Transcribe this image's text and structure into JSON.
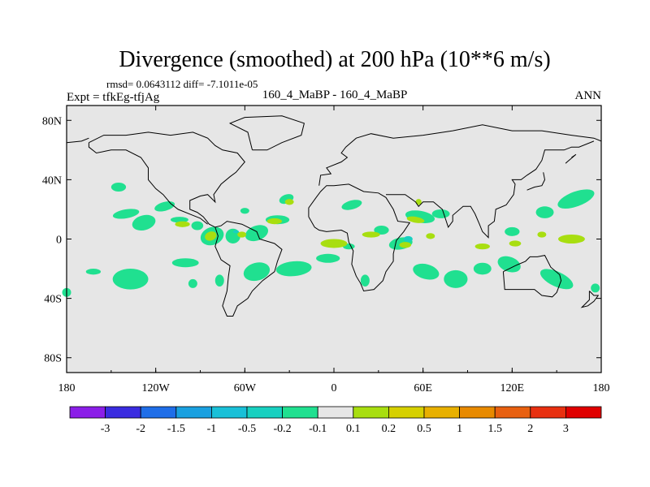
{
  "chart_data": {
    "type": "heatmap",
    "title": "Divergence (smoothed) at 200 hPa (10**6 m/s)",
    "stats_line": "rmsd= 0.0643112 diff= -7.1011e-05",
    "left_label": "Expt = tfkEg-tfjAg",
    "center_label": "160_4_MaBP - 160_4_MaBP",
    "right_label": "ANN",
    "xlim": [
      -180,
      180
    ],
    "ylim": [
      -90,
      90
    ],
    "x_ticks": [
      {
        "value": -180,
        "label": "180"
      },
      {
        "value": -120,
        "label": "120W"
      },
      {
        "value": -60,
        "label": "60W"
      },
      {
        "value": 0,
        "label": "0"
      },
      {
        "value": 60,
        "label": "60E"
      },
      {
        "value": 120,
        "label": "120E"
      },
      {
        "value": 180,
        "label": "180"
      }
    ],
    "y_ticks": [
      {
        "value": 80,
        "label": "80N"
      },
      {
        "value": 40,
        "label": "40N"
      },
      {
        "value": 0,
        "label": "0"
      },
      {
        "value": -40,
        "label": "40S"
      },
      {
        "value": -80,
        "label": "80S"
      }
    ],
    "colorbar": {
      "levels": [
        "-3",
        "-2",
        "-1.5",
        "-1",
        "-0.5",
        "-0.2",
        "-0.1",
        "0.1",
        "0.2",
        "0.5",
        "1",
        "1.5",
        "2",
        "3"
      ],
      "colors": [
        "#8b1ee8",
        "#3a2ce0",
        "#1f6ee8",
        "#1aa0e0",
        "#19c0d8",
        "#18d0c0",
        "#20e090",
        "#e6e6e6",
        "#a8de10",
        "#d6d000",
        "#e8b000",
        "#e88a00",
        "#e86010",
        "#e83010",
        "#e00000"
      ]
    },
    "blobs": [
      {
        "lon": -145,
        "lat": 35,
        "rx": 5,
        "ry": 3,
        "rot": 0,
        "range": "-0.2 to -0.1"
      },
      {
        "lon": -140,
        "lat": 17,
        "rx": 9,
        "ry": 3,
        "rot": -10,
        "range": "-0.2 to -0.1"
      },
      {
        "lon": -128,
        "lat": 11,
        "rx": 8,
        "ry": 5,
        "rot": -15,
        "range": "-0.2 to -0.1"
      },
      {
        "lon": -114,
        "lat": 22,
        "rx": 7,
        "ry": 3,
        "rot": -15,
        "range": "-0.2 to -0.1"
      },
      {
        "lon": -104,
        "lat": 13,
        "rx": 6,
        "ry": 2,
        "rot": 0,
        "range": "-0.2 to -0.1"
      },
      {
        "lon": -92,
        "lat": 9,
        "rx": 4,
        "ry": 3,
        "rot": 0,
        "range": "-0.2 to -0.1"
      },
      {
        "lon": -82,
        "lat": 2,
        "rx": 8,
        "ry": 6,
        "rot": -20,
        "range": "-0.2 to -0.1"
      },
      {
        "lon": -68,
        "lat": 2,
        "rx": 5,
        "ry": 5,
        "rot": 0,
        "range": "-0.2 to -0.1"
      },
      {
        "lon": -52,
        "lat": 4,
        "rx": 8,
        "ry": 5,
        "rot": -20,
        "range": "-0.2 to -0.1"
      },
      {
        "lon": -60,
        "lat": 19,
        "rx": 3,
        "ry": 2,
        "rot": 0,
        "range": "-0.2 to -0.1"
      },
      {
        "lon": -100,
        "lat": -16,
        "rx": 9,
        "ry": 3,
        "rot": 0,
        "range": "-0.2 to -0.1"
      },
      {
        "lon": -137,
        "lat": -27,
        "rx": 12,
        "ry": 7,
        "rot": 0,
        "range": "-0.2 to -0.1"
      },
      {
        "lon": -162,
        "lat": -22,
        "rx": 5,
        "ry": 2,
        "rot": 0,
        "range": "-0.2 to -0.1"
      },
      {
        "lon": -95,
        "lat": -30,
        "rx": 3,
        "ry": 3,
        "rot": 0,
        "range": "-0.2 to -0.1"
      },
      {
        "lon": -77,
        "lat": -28,
        "rx": 3,
        "ry": 4,
        "rot": 0,
        "range": "-0.2 to -0.1"
      },
      {
        "lon": -52,
        "lat": -22,
        "rx": 9,
        "ry": 6,
        "rot": -15,
        "range": "-0.2 to -0.1"
      },
      {
        "lon": -27,
        "lat": -20,
        "rx": 12,
        "ry": 5,
        "rot": -5,
        "range": "-0.2 to -0.1"
      },
      {
        "lon": -38,
        "lat": 13,
        "rx": 8,
        "ry": 3,
        "rot": 0,
        "range": "-0.2 to -0.1"
      },
      {
        "lon": -32,
        "lat": 27,
        "rx": 5,
        "ry": 3,
        "rot": -20,
        "range": "-0.2 to -0.1"
      },
      {
        "lon": -4,
        "lat": -13,
        "rx": 8,
        "ry": 3,
        "rot": 0,
        "range": "-0.2 to -0.1"
      },
      {
        "lon": 10,
        "lat": -5,
        "rx": 4,
        "ry": 2,
        "rot": 0,
        "range": "-0.2 to -0.1"
      },
      {
        "lon": 12,
        "lat": 23,
        "rx": 7,
        "ry": 3,
        "rot": -15,
        "range": "-0.2 to -0.1"
      },
      {
        "lon": 32,
        "lat": 6,
        "rx": 5,
        "ry": 3,
        "rot": 0,
        "range": "-0.2 to -0.1"
      },
      {
        "lon": 45,
        "lat": -3,
        "rx": 8,
        "ry": 4,
        "rot": -10,
        "range": "-0.2 to -0.1"
      },
      {
        "lon": 58,
        "lat": 15,
        "rx": 10,
        "ry": 4,
        "rot": 10,
        "range": "-0.2 to -0.1"
      },
      {
        "lon": 72,
        "lat": 17,
        "rx": 6,
        "ry": 3,
        "rot": 0,
        "range": "-0.2 to -0.1"
      },
      {
        "lon": 62,
        "lat": -22,
        "rx": 9,
        "ry": 5,
        "rot": 15,
        "range": "-0.2 to -0.1"
      },
      {
        "lon": 82,
        "lat": -27,
        "rx": 8,
        "ry": 6,
        "rot": 0,
        "range": "-0.2 to -0.1"
      },
      {
        "lon": 100,
        "lat": -20,
        "rx": 6,
        "ry": 4,
        "rot": 0,
        "range": "-0.2 to -0.1"
      },
      {
        "lon": 118,
        "lat": -17,
        "rx": 8,
        "ry": 5,
        "rot": 20,
        "range": "-0.2 to -0.1"
      },
      {
        "lon": 150,
        "lat": -27,
        "rx": 12,
        "ry": 5,
        "rot": 25,
        "range": "-0.2 to -0.1"
      },
      {
        "lon": 142,
        "lat": 18,
        "rx": 6,
        "ry": 4,
        "rot": 0,
        "range": "-0.2 to -0.1"
      },
      {
        "lon": 163,
        "lat": 27,
        "rx": 13,
        "ry": 5,
        "rot": -20,
        "range": "-0.2 to -0.1"
      },
      {
        "lon": 120,
        "lat": 5,
        "rx": 5,
        "ry": 3,
        "rot": 0,
        "range": "-0.2 to -0.1"
      },
      {
        "lon": 176,
        "lat": -33,
        "rx": 3,
        "ry": 3,
        "rot": 0,
        "range": "-0.2 to -0.1"
      },
      {
        "lon": -180,
        "lat": -36,
        "rx": 3,
        "ry": 3,
        "rot": 0,
        "range": "-0.2 to -0.1"
      },
      {
        "lon": 21,
        "lat": -28,
        "rx": 3,
        "ry": 4,
        "rot": 0,
        "range": "-0.2 to -0.1"
      },
      {
        "lon": -102,
        "lat": 10,
        "rx": 5,
        "ry": 2,
        "rot": 0,
        "range": "0.1 to 0.2"
      },
      {
        "lon": -83,
        "lat": 2,
        "rx": 4,
        "ry": 3,
        "rot": -20,
        "range": "0.1 to 0.2"
      },
      {
        "lon": -62,
        "lat": 3,
        "rx": 3,
        "ry": 2,
        "rot": 0,
        "range": "0.1 to 0.2"
      },
      {
        "lon": 0,
        "lat": -3,
        "rx": 9,
        "ry": 3,
        "rot": 0,
        "range": "0.1 to 0.2"
      },
      {
        "lon": 25,
        "lat": 3,
        "rx": 6,
        "ry": 2,
        "rot": 0,
        "range": "0.1 to 0.2"
      },
      {
        "lon": 55,
        "lat": 13,
        "rx": 6,
        "ry": 2,
        "rot": 10,
        "range": "0.1 to 0.2"
      },
      {
        "lon": 65,
        "lat": 2,
        "rx": 3,
        "ry": 2,
        "rot": 0,
        "range": "0.1 to 0.2"
      },
      {
        "lon": 100,
        "lat": -5,
        "rx": 5,
        "ry": 2,
        "rot": 0,
        "range": "0.1 to 0.2"
      },
      {
        "lon": 122,
        "lat": -3,
        "rx": 4,
        "ry": 2,
        "rot": 0,
        "range": "0.1 to 0.2"
      },
      {
        "lon": 140,
        "lat": 3,
        "rx": 3,
        "ry": 2,
        "rot": 0,
        "range": "0.1 to 0.2"
      },
      {
        "lon": 160,
        "lat": 0,
        "rx": 9,
        "ry": 3,
        "rot": 0,
        "range": "0.1 to 0.2"
      },
      {
        "lon": -30,
        "lat": 25,
        "rx": 3,
        "ry": 2,
        "rot": 0,
        "range": "0.1 to 0.2"
      },
      {
        "lon": -40,
        "lat": 12,
        "rx": 5,
        "ry": 2,
        "rot": 0,
        "range": "0.1 to 0.2"
      },
      {
        "lon": 48,
        "lat": -4,
        "rx": 4,
        "ry": 2,
        "rot": 0,
        "range": "0.1 to 0.2"
      },
      {
        "lon": 57,
        "lat": 25,
        "rx": 2,
        "ry": 2,
        "rot": 0,
        "range": "0.1 to 0.2"
      },
      {
        "lon": 50,
        "lat": 0,
        "rx": 3,
        "ry": 2,
        "rot": 0,
        "range": "-0.5 to -0.2"
      },
      {
        "lon": -66,
        "lat": 5,
        "rx": 2,
        "ry": 1,
        "rot": 0,
        "range": "-0.5 to -0.2"
      }
    ]
  }
}
